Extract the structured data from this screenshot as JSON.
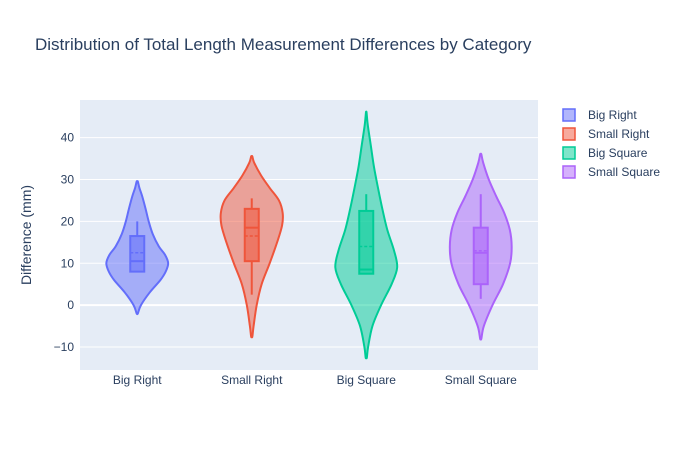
{
  "chart_data": {
    "type": "violin",
    "title": "Distribution of Total Length Measurement Differences by Category",
    "xlabel": "",
    "ylabel": "Difference (mm)",
    "ylim": [
      -15.5,
      49
    ],
    "yticks": [
      -10,
      0,
      10,
      20,
      30,
      40
    ],
    "ytick_labels": [
      "−10",
      "0",
      "10",
      "20",
      "30",
      "40"
    ],
    "grid": true,
    "legend": "top-right",
    "categories": [
      "Big Right",
      "Small Right",
      "Big Square",
      "Small Square"
    ],
    "series": [
      {
        "name": "Big Right",
        "color": "#636efa",
        "kde_min": -2,
        "kde_max": 29.5,
        "box": {
          "q1": 8,
          "median": 10.5,
          "mean": 12.5,
          "q3": 16.5,
          "whisker_low": 8,
          "whisker_high": 20
        },
        "profile": [
          [
            -2,
            0.02
          ],
          [
            0,
            0.12
          ],
          [
            3,
            0.4
          ],
          [
            6,
            0.75
          ],
          [
            8,
            0.92
          ],
          [
            10,
            1.0
          ],
          [
            12,
            0.9
          ],
          [
            14,
            0.7
          ],
          [
            17,
            0.5
          ],
          [
            20,
            0.37
          ],
          [
            23,
            0.27
          ],
          [
            26,
            0.16
          ],
          [
            28,
            0.07
          ],
          [
            29.5,
            0.02
          ]
        ]
      },
      {
        "name": "Small Right",
        "color": "#ef553b",
        "kde_min": -7.5,
        "kde_max": 35.5,
        "box": {
          "q1": 10.5,
          "median": 18.5,
          "mean": 16.5,
          "q3": 23,
          "whisker_low": 2.5,
          "whisker_high": 25.5
        },
        "profile": [
          [
            -7.5,
            0.02
          ],
          [
            -5,
            0.06
          ],
          [
            0,
            0.16
          ],
          [
            5,
            0.32
          ],
          [
            10,
            0.58
          ],
          [
            15,
            0.82
          ],
          [
            19,
            0.98
          ],
          [
            22,
            1.0
          ],
          [
            25,
            0.88
          ],
          [
            28,
            0.58
          ],
          [
            31,
            0.3
          ],
          [
            34,
            0.08
          ],
          [
            35.5,
            0.02
          ]
        ]
      },
      {
        "name": "Big Square",
        "color": "#00cc96",
        "kde_min": -12.5,
        "kde_max": 46,
        "box": {
          "q1": 7.5,
          "median": 8.5,
          "mean": 14,
          "q3": 22.5,
          "whisker_low": 7.5,
          "whisker_high": 26.5
        },
        "profile": [
          [
            -12.5,
            0.02
          ],
          [
            -10,
            0.06
          ],
          [
            -5,
            0.2
          ],
          [
            0,
            0.48
          ],
          [
            5,
            0.82
          ],
          [
            9,
            1.0
          ],
          [
            13,
            0.9
          ],
          [
            18,
            0.68
          ],
          [
            23,
            0.52
          ],
          [
            28,
            0.38
          ],
          [
            33,
            0.25
          ],
          [
            38,
            0.15
          ],
          [
            43,
            0.05
          ],
          [
            46,
            0.01
          ]
        ]
      },
      {
        "name": "Small Square",
        "color": "#ab63fa",
        "kde_min": -8,
        "kde_max": 36,
        "box": {
          "q1": 5,
          "median": 12.5,
          "mean": 13,
          "q3": 18.5,
          "whisker_low": 1.5,
          "whisker_high": 26.5
        },
        "profile": [
          [
            -8,
            0.02
          ],
          [
            -5,
            0.1
          ],
          [
            0,
            0.38
          ],
          [
            5,
            0.72
          ],
          [
            10,
            0.95
          ],
          [
            14,
            1.0
          ],
          [
            18,
            0.94
          ],
          [
            22,
            0.76
          ],
          [
            26,
            0.5
          ],
          [
            30,
            0.26
          ],
          [
            34,
            0.08
          ],
          [
            36,
            0.02
          ]
        ]
      }
    ]
  }
}
